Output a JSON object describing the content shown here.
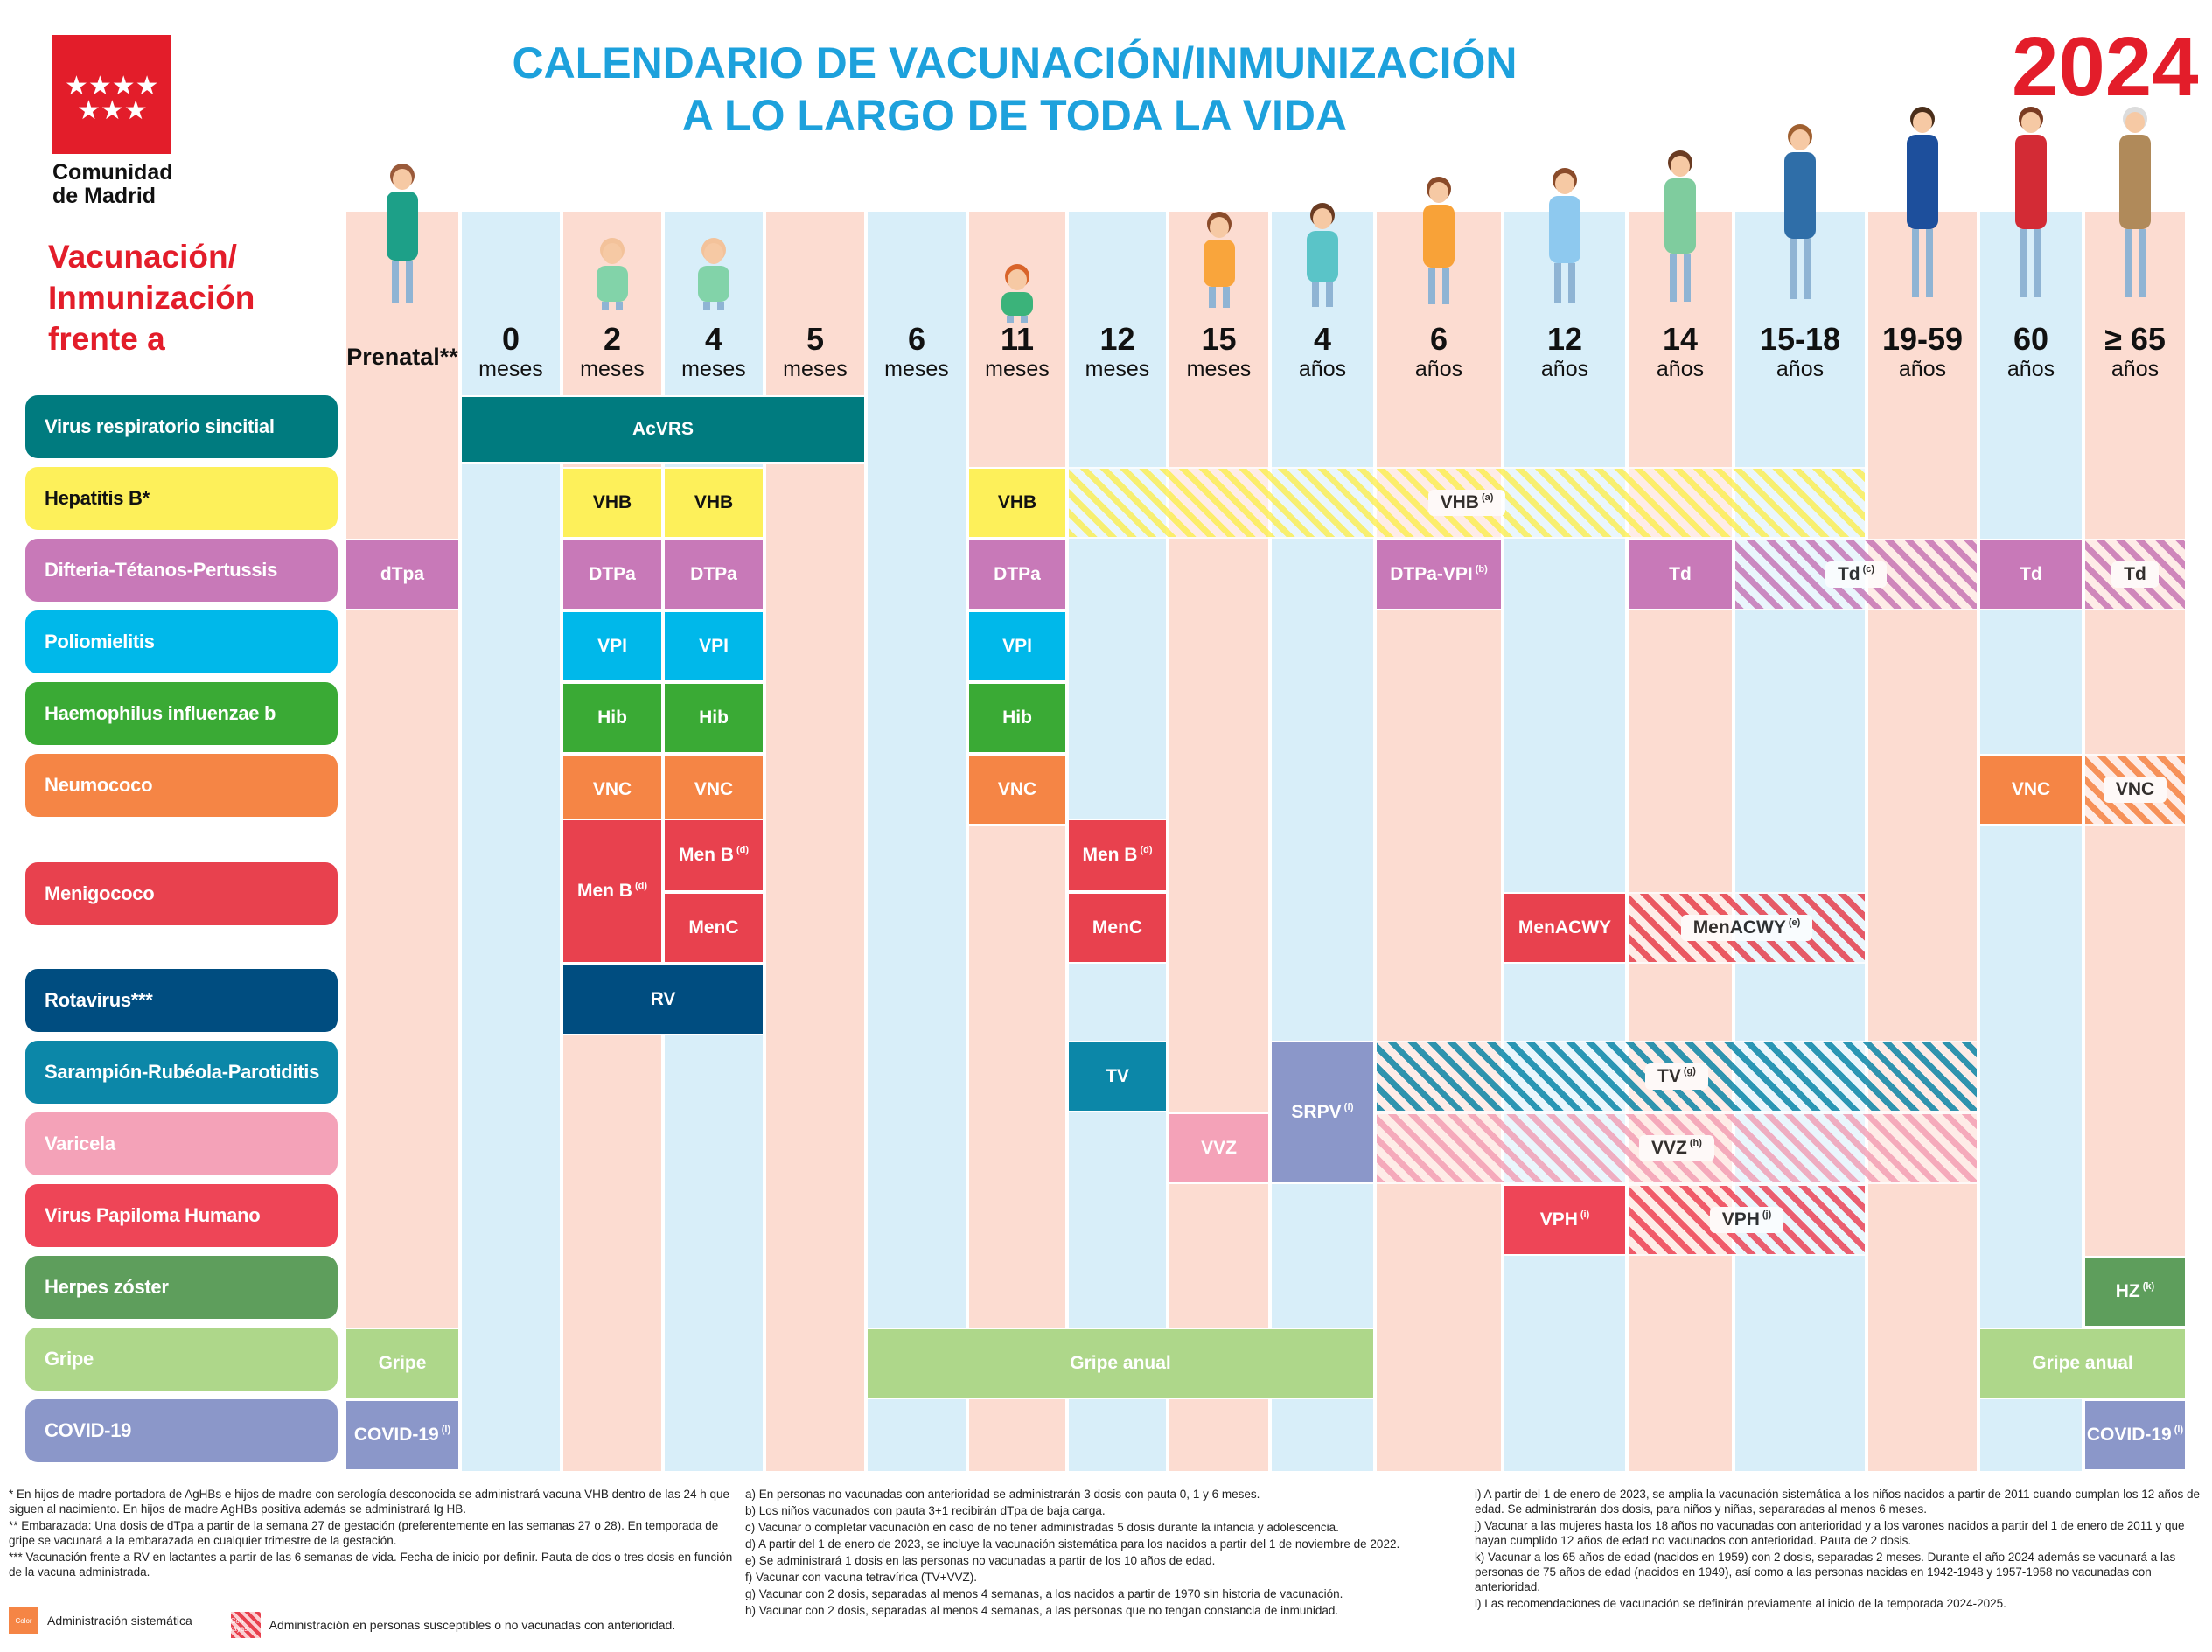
{
  "header": {
    "logo_text": "Comunidad\nde Madrid",
    "title_line1": "CALENDARIO DE VACUNACIÓN/INMUNIZACIÓN",
    "title_line2": "A LO LARGO DE TODA LA VIDA",
    "year": "2024",
    "side_title": "Vacunación/\nInmunización\nfrente a"
  },
  "columns": [
    {
      "n": "Prenatal**",
      "u": ""
    },
    {
      "n": "0",
      "u": "meses"
    },
    {
      "n": "2",
      "u": "meses"
    },
    {
      "n": "4",
      "u": "meses"
    },
    {
      "n": "5",
      "u": "meses"
    },
    {
      "n": "6",
      "u": "meses"
    },
    {
      "n": "11",
      "u": "meses"
    },
    {
      "n": "12",
      "u": "meses"
    },
    {
      "n": "15",
      "u": "meses"
    },
    {
      "n": "4",
      "u": "años"
    },
    {
      "n": "6",
      "u": "años"
    },
    {
      "n": "12",
      "u": "años"
    },
    {
      "n": "14",
      "u": "años"
    },
    {
      "n": "15-18",
      "u": "años"
    },
    {
      "n": "19-59",
      "u": "años"
    },
    {
      "n": "60",
      "u": "años"
    },
    {
      "n": "≥ 65",
      "u": "años"
    }
  ],
  "rows": [
    {
      "label": "Virus respiratorio sincitial",
      "color": "#007b7f"
    },
    {
      "label": "Hepatitis B*",
      "color": "#fdf05a"
    },
    {
      "label": "Difteria-Tétanos-Pertussis",
      "color": "#c879b8"
    },
    {
      "label": "Poliomielitis",
      "color": "#00b8ea"
    },
    {
      "label": "Haemophilus influenzae b",
      "color": "#3aaa35"
    },
    {
      "label": "Neumococo",
      "color": "#f58545"
    },
    {
      "label": "Menigococo",
      "color": "#e8414e"
    },
    {
      "label": "Rotavirus***",
      "color": "#004d80"
    },
    {
      "label": "Sarampión-Rubéola-Parotiditis",
      "color": "#0c87a8"
    },
    {
      "label": "Varicela",
      "color": "#f4a2b8"
    },
    {
      "label": "Virus Papiloma Humano",
      "color": "#ee4557"
    },
    {
      "label": "Herpes zóster",
      "color": "#5e9e5c"
    },
    {
      "label": "Gripe",
      "color": "#aed78a"
    },
    {
      "label": "COVID-19",
      "color": "#8b97c9"
    }
  ],
  "vaccines": [
    {
      "text": "AcVRS",
      "sup": ""
    },
    {
      "text": "VHB",
      "sup": ""
    },
    {
      "text": "VHB",
      "sup": ""
    },
    {
      "text": "VHB",
      "sup": ""
    },
    {
      "text": "VHB",
      "sup": "(a)"
    },
    {
      "text": "dTpa",
      "sup": ""
    },
    {
      "text": "DTPa",
      "sup": ""
    },
    {
      "text": "DTPa",
      "sup": ""
    },
    {
      "text": "DTPa",
      "sup": ""
    },
    {
      "text": "DTPa-VPI",
      "sup": "(b)"
    },
    {
      "text": "Td",
      "sup": ""
    },
    {
      "text": "Td",
      "sup": "(c)"
    },
    {
      "text": "Td",
      "sup": ""
    },
    {
      "text": "Td",
      "sup": ""
    },
    {
      "text": "VPI",
      "sup": ""
    },
    {
      "text": "VPI",
      "sup": ""
    },
    {
      "text": "VPI",
      "sup": ""
    },
    {
      "text": "Hib",
      "sup": ""
    },
    {
      "text": "Hib",
      "sup": ""
    },
    {
      "text": "Hib",
      "sup": ""
    },
    {
      "text": "VNC",
      "sup": ""
    },
    {
      "text": "VNC",
      "sup": ""
    },
    {
      "text": "VNC",
      "sup": ""
    },
    {
      "text": "VNC",
      "sup": ""
    },
    {
      "text": "VNC",
      "sup": ""
    },
    {
      "text": "Men B",
      "sup": "(d)"
    },
    {
      "text": "Men B",
      "sup": "(d)"
    },
    {
      "text": "MenC",
      "sup": ""
    },
    {
      "text": "Men B",
      "sup": "(d)"
    },
    {
      "text": "MenC",
      "sup": ""
    },
    {
      "text": "MenACWY",
      "sup": ""
    },
    {
      "text": "MenACWY",
      "sup": "(e)"
    },
    {
      "text": "RV",
      "sup": ""
    },
    {
      "text": "TV",
      "sup": ""
    },
    {
      "text": "SRPV",
      "sup": "(f)"
    },
    {
      "text": "TV",
      "sup": "(g)"
    },
    {
      "text": "VVZ",
      "sup": ""
    },
    {
      "text": "VVZ",
      "sup": "(h)"
    },
    {
      "text": "VPH",
      "sup": "(i)"
    },
    {
      "text": "VPH",
      "sup": "(j)"
    },
    {
      "text": "HZ",
      "sup": "(k)"
    },
    {
      "text": "Gripe",
      "sup": ""
    },
    {
      "text": "Gripe anual",
      "sup": ""
    },
    {
      "text": "Gripe anual",
      "sup": ""
    },
    {
      "text": "COVID-19",
      "sup": "(l)"
    },
    {
      "text": "COVID-19",
      "sup": "(l)"
    }
  ],
  "notes": {
    "col1": [
      "* En hijos de madre portadora de AgHBs e hijos de madre con serología desconocida se administrará vacuna VHB dentro de las 24 h que siguen al nacimiento. En hijos de madre AgHBs positiva además se administrará Ig HB.",
      "** Embarazada: Una dosis de dTpa a partir de la semana 27 de gestación (preferentemente en las semanas 27 o 28). En temporada de gripe se vacunará a la embarazada en cualquier trimestre de la gestación.",
      "*** Vacunación frente a RV en lactantes a partir de las 6 semanas de vida. Fecha de inicio por definir. Pauta de dos o tres dosis en función de la vacuna administrada."
    ],
    "col2": [
      "a) En personas no vacunadas con anterioridad se administrarán 3 dosis con pauta 0, 1 y 6 meses.",
      "b) Los niños vacunados con pauta 3+1 recibirán dTpa de baja carga.",
      "c) Vacunar o completar vacunación en caso de no tener administradas 5 dosis durante la infancia y adolescencia.",
      "d) A partir del 1 de enero de 2023, se incluye la vacunación sistemática para los nacidos a partir del 1 de noviembre de 2022.",
      "e) Se administrará 1 dosis en las personas no vacunadas a partir de los 10 años de edad.",
      "f) Vacunar con vacuna tetravírica (TV+VVZ).",
      "g) Vacunar con 2 dosis, separadas al menos 4 semanas, a los nacidos a partir de 1970 sin historia de vacunación.",
      "h) Vacunar con 2 dosis, separadas al menos 4 semanas, a las personas que no tengan constancia de inmunidad."
    ],
    "col3": [
      "i) A partir del 1 de enero de 2023, se amplia la vacunación sistemática a los niños nacidos a partir de 2011 cuando cumplan los 12 años de edad. Se administrarán dos dosis, para niños y niñas, separaradas al menos 6 meses.",
      "j) Vacunar a las mujeres hasta los 18 años no vacunadas con anterioridad y a los varones nacidos a partir del 1 de enero de 2011 y que hayan cumplido 12 años de edad no vacunados con anterioridad. Pauta de 2 dosis.",
      "k) Vacunar a los 65 años de edad (nacidos en 1959) con 2 dosis, separadas 2 meses. Durante el año 2024 además se vacunará a las personas de 75 años de edad (nacidos en 1949), así como a las personas nacidas en 1942-1948 y 1957-1958 no vacunadas con anterioridad.",
      "l) Las recomendaciones de vacunación se definirán previamente al inicio de la temporada 2024-2025."
    ]
  },
  "legend": {
    "color_swatch": "Color",
    "color_label": "Administración sistemática",
    "stripe_swatch": "Con rayas",
    "stripe_label": "Administración en personas susceptibles o no vacunadas con anterioridad."
  },
  "colors": {
    "pink_col": "#fcdcd1",
    "blue_col": "#d8eef9",
    "title_blue": "#1da1dc",
    "brand_red": "#e31d2a"
  }
}
